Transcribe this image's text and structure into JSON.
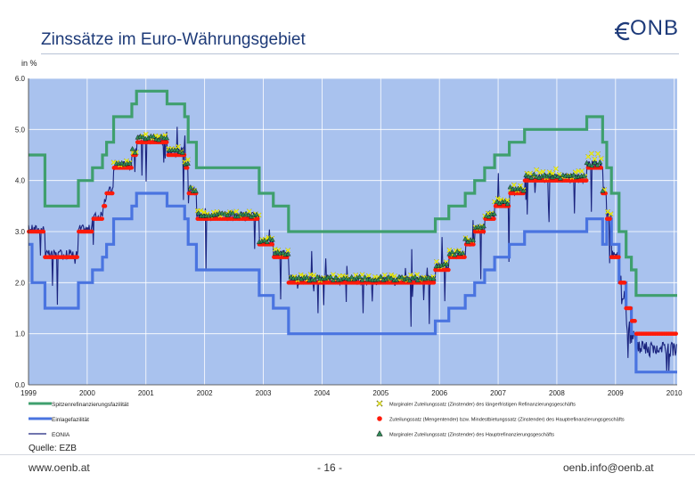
{
  "header": {
    "title": "Zinssätze im Euro-Währungsgebiet",
    "logo_text": "ONB"
  },
  "footer": {
    "left": "www.oenb.at",
    "center": "- 16 -",
    "right": "oenb.info@oenb.at"
  },
  "colors": {
    "plot_bg": "#a9c2ee",
    "upper": "#3f9f6e",
    "lower": "#4a74e0",
    "eonia": "#1a237e",
    "main_rate": "#ff1a0a",
    "triangle_fill": "#2e8b57",
    "marker_x": "#e8e800"
  },
  "chart_data": {
    "type": "line",
    "ylabel": "in %",
    "source": "Quelle: EZB",
    "y_ticks": [
      "0.0",
      "1.0",
      "2.0",
      "3.0",
      "4.0",
      "5.0",
      "6.0"
    ],
    "ylim": [
      0,
      6
    ],
    "x_ticks": [
      "1999",
      "2000",
      "2001",
      "2002",
      "2003",
      "2004",
      "2005",
      "2006",
      "2007",
      "2008",
      "2009",
      "2010"
    ],
    "xlim": [
      1999.0,
      2010.05
    ],
    "grid": true,
    "legend_placement": "bottom",
    "legend": [
      {
        "label": "Spitzenrefinanzierungsfazilität",
        "color": "#3f9f6e",
        "kind": "line"
      },
      {
        "label": "Einlagefazilität",
        "color": "#4a74e0",
        "kind": "line"
      },
      {
        "label": "EONIA",
        "color": "#1a237e",
        "kind": "thin-line"
      },
      {
        "label": "Marginaler Zuteilungssatz (Zinstender) des längerfristigen Refinanzierungsgeschäfts",
        "color": "#e8e800",
        "kind": "x"
      },
      {
        "label": "Zuteilungssatz (Mengentender) bzw. Mindestbietungssatz (Zinstender) des Hauptrefinanzierungsgeschäfts",
        "color": "#ff1a0a",
        "kind": "dot"
      },
      {
        "label": "Marginaler Zuteilungssatz (Zinstender) des Hauptrefinanzierungsgeschäfts",
        "color": "#2e8b57",
        "kind": "triangle"
      }
    ],
    "series": [
      {
        "name": "Spitzenrefinanzierungsfazilität",
        "x": [
          1999.0,
          1999.01,
          1999.06,
          1999.28,
          1999.85,
          2000.09,
          2000.26,
          2000.33,
          2000.45,
          2000.76,
          2000.84,
          2001.36,
          2001.66,
          2001.72,
          2001.86,
          2002.93,
          2003.17,
          2003.43,
          2005.93,
          2006.16,
          2006.44,
          2006.6,
          2006.77,
          2006.94,
          2007.19,
          2007.45,
          2008.51,
          2008.78,
          2008.85,
          2008.93,
          2009.06,
          2009.18,
          2009.27,
          2009.35,
          2010.05
        ],
        "values": [
          4.5,
          4.5,
          4.5,
          3.5,
          4.0,
          4.25,
          4.5,
          4.75,
          5.25,
          5.5,
          5.75,
          5.5,
          5.25,
          4.75,
          4.25,
          3.75,
          3.5,
          3.0,
          3.25,
          3.5,
          3.75,
          4.0,
          4.25,
          4.5,
          4.75,
          5.0,
          5.25,
          4.75,
          4.25,
          3.75,
          3.0,
          2.5,
          2.25,
          1.75,
          1.75
        ]
      },
      {
        "name": "Einlagefazilität",
        "x": [
          1999.0,
          1999.01,
          1999.06,
          1999.28,
          1999.85,
          2000.09,
          2000.26,
          2000.33,
          2000.45,
          2000.76,
          2000.84,
          2001.36,
          2001.66,
          2001.72,
          2001.86,
          2002.93,
          2003.17,
          2003.43,
          2005.93,
          2006.16,
          2006.44,
          2006.6,
          2006.77,
          2006.94,
          2007.19,
          2007.45,
          2008.51,
          2008.78,
          2008.85,
          2008.93,
          2009.06,
          2009.18,
          2009.27,
          2009.35,
          2010.05
        ],
        "values": [
          2.75,
          2.75,
          2.0,
          1.5,
          2.0,
          2.25,
          2.5,
          2.75,
          3.25,
          3.5,
          3.75,
          3.5,
          3.25,
          2.75,
          2.25,
          1.75,
          1.5,
          1.0,
          1.25,
          1.5,
          1.75,
          2.0,
          2.25,
          2.5,
          2.75,
          3.0,
          3.25,
          2.75,
          3.25,
          2.75,
          2.0,
          1.5,
          1.0,
          0.25,
          0.25
        ]
      },
      {
        "name": "Hauptrefinanzierungssatz",
        "x": [
          1999.0,
          1999.28,
          1999.85,
          2000.09,
          2000.26,
          2000.33,
          2000.45,
          2000.76,
          2000.84,
          2001.36,
          2001.66,
          2001.72,
          2001.86,
          2002.93,
          2003.17,
          2003.43,
          2005.93,
          2006.16,
          2006.44,
          2006.6,
          2006.77,
          2006.94,
          2007.19,
          2007.45,
          2008.51,
          2008.78,
          2008.85,
          2008.93,
          2009.06,
          2009.18,
          2009.27,
          2009.35,
          2010.05
        ],
        "values": [
          3.0,
          2.5,
          3.0,
          3.25,
          3.5,
          3.75,
          4.25,
          4.5,
          4.75,
          4.5,
          4.25,
          3.75,
          3.25,
          2.75,
          2.5,
          2.0,
          2.25,
          2.5,
          2.75,
          3.0,
          3.25,
          3.5,
          3.75,
          4.0,
          4.25,
          3.75,
          3.25,
          2.5,
          2.0,
          1.5,
          1.25,
          1.0,
          1.0
        ]
      }
    ]
  }
}
